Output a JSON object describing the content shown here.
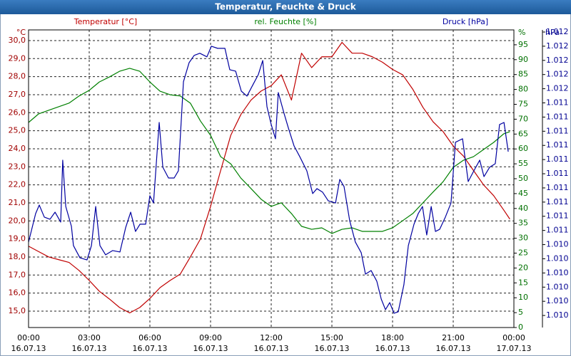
{
  "chart_data": {
    "type": "line",
    "title": "Temperatur, Feuchte & Druck",
    "ylabel": "°C",
    "y2label": "%",
    "y3label": "hPa",
    "xlim": [
      0,
      24
    ],
    "xticks": [
      {
        "value": 0,
        "label": "00:00"
      },
      {
        "value": 3,
        "label": "03:00"
      },
      {
        "value": 6,
        "label": "06:00"
      },
      {
        "value": 9,
        "label": "09:00"
      },
      {
        "value": 12,
        "label": "12:00"
      },
      {
        "value": 15,
        "label": "15:00"
      },
      {
        "value": 18,
        "label": "18:00"
      },
      {
        "value": 21,
        "label": "21:00"
      },
      {
        "value": 24,
        "label": "00:00"
      }
    ],
    "xtick_dates": [
      "16.07.13",
      "16.07.13",
      "16.07.13",
      "16.07.13",
      "16.07.13",
      "16.07.13",
      "16.07.13",
      "16.07.13",
      "17.07.13"
    ],
    "ylim": [
      14.09,
      30.59
    ],
    "yticks": [
      {
        "value": 15,
        "label": "15,0"
      },
      {
        "value": 16,
        "label": "16,0"
      },
      {
        "value": 17,
        "label": "17,0"
      },
      {
        "value": 18,
        "label": "18,0"
      },
      {
        "value": 19,
        "label": "19,0"
      },
      {
        "value": 20,
        "label": "20,0"
      },
      {
        "value": 21,
        "label": "21,0"
      },
      {
        "value": 22,
        "label": "22,0"
      },
      {
        "value": 23,
        "label": "23,0"
      },
      {
        "value": 24,
        "label": "24,0"
      },
      {
        "value": 25,
        "label": "25,0"
      },
      {
        "value": 26,
        "label": "26,0"
      },
      {
        "value": 27,
        "label": "27,0"
      },
      {
        "value": 28,
        "label": "28,0"
      },
      {
        "value": 29,
        "label": "29,0"
      },
      {
        "value": 30,
        "label": "30,0"
      }
    ],
    "y2lim": [
      0,
      100
    ],
    "y2ticks": [
      0,
      5,
      10,
      15,
      20,
      25,
      30,
      35,
      40,
      45,
      50,
      55,
      60,
      65,
      70,
      75,
      80,
      85,
      90,
      95
    ],
    "y3lim": [
      1009.815,
      1011.915
    ],
    "y3ticks": [
      {
        "value": 1009.9,
        "label": "1.010"
      },
      {
        "value": 1010.0,
        "label": "1.010"
      },
      {
        "value": 1010.1,
        "label": "1.010"
      },
      {
        "value": 1010.2,
        "label": "1.010"
      },
      {
        "value": 1010.3,
        "label": "1.010"
      },
      {
        "value": 1010.4,
        "label": "1.010"
      },
      {
        "value": 1010.5,
        "label": "1.011"
      },
      {
        "value": 1010.6,
        "label": "1.011"
      },
      {
        "value": 1010.7,
        "label": "1.011"
      },
      {
        "value": 1010.8,
        "label": "1.011"
      },
      {
        "value": 1010.9,
        "label": "1.011"
      },
      {
        "value": 1011.0,
        "label": "1.011"
      },
      {
        "value": 1011.1,
        "label": "1.011"
      },
      {
        "value": 1011.2,
        "label": "1.011"
      },
      {
        "value": 1011.3,
        "label": "1.011"
      },
      {
        "value": 1011.4,
        "label": "1.011"
      },
      {
        "value": 1011.5,
        "label": "1.012"
      },
      {
        "value": 1011.6,
        "label": "1.012"
      },
      {
        "value": 1011.7,
        "label": "1.012"
      },
      {
        "value": 1011.8,
        "label": "1.012"
      },
      {
        "value": 1011.9,
        "label": "1.012"
      }
    ],
    "grid": true,
    "series": [
      {
        "name": "Temperatur [°C]",
        "color": "#c00000",
        "axis": "y",
        "x": [
          0,
          0.5,
          1,
          1.5,
          2,
          2.5,
          3,
          3.5,
          4,
          4.5,
          5,
          5.5,
          6,
          6.5,
          7,
          7.5,
          8,
          8.5,
          9,
          9.5,
          10,
          10.5,
          11,
          11.5,
          12,
          12.5,
          13,
          13.5,
          14,
          14.5,
          15,
          15.5,
          16,
          16.5,
          17,
          17.5,
          18,
          18.5,
          19,
          19.5,
          20,
          20.5,
          21,
          21.5,
          22,
          22.5,
          23,
          23.5,
          23.8
        ],
        "values": [
          18.6,
          18.3,
          18.0,
          17.85,
          17.7,
          17.25,
          16.7,
          16.1,
          15.67,
          15.2,
          14.9,
          15.2,
          15.7,
          16.3,
          16.7,
          17.05,
          18.0,
          19.0,
          20.8,
          22.8,
          24.75,
          25.9,
          26.7,
          27.2,
          27.5,
          28.1,
          26.7,
          29.3,
          28.5,
          29.1,
          29.1,
          29.9,
          29.3,
          29.3,
          29.1,
          28.8,
          28.4,
          28.1,
          27.3,
          26.3,
          25.5,
          24.95,
          24.15,
          23.6,
          22.8,
          22.0,
          21.4,
          20.6,
          20.1
        ]
      },
      {
        "name": "rel. Feuchte [%]",
        "color": "#008000",
        "axis": "y2",
        "x": [
          0,
          0.5,
          1,
          1.5,
          2,
          2.5,
          3,
          3.5,
          4,
          4.5,
          5,
          5.5,
          6,
          6.5,
          7,
          7.5,
          8,
          8.5,
          9,
          9.5,
          10,
          10.5,
          11,
          11.5,
          12,
          12.5,
          13,
          13.5,
          14,
          14.5,
          15,
          15.5,
          16,
          16.5,
          17,
          17.5,
          18,
          18.5,
          19,
          19.5,
          20,
          20.5,
          21,
          21.5,
          22,
          22.5,
          23,
          23.5,
          23.8
        ],
        "values": [
          68.9,
          71.8,
          73,
          74.2,
          75.4,
          77.8,
          79.7,
          82.5,
          84.2,
          86.1,
          87.1,
          86.1,
          82.5,
          79.4,
          78.2,
          77.8,
          75.4,
          69.4,
          64.6,
          57.4,
          55,
          50.2,
          46.7,
          43.1,
          40.7,
          41.9,
          38.3,
          34,
          33,
          33.5,
          31.6,
          33,
          33.5,
          32.3,
          32.3,
          32.3,
          33.5,
          35.9,
          38.3,
          41.9,
          45.5,
          49,
          53.8,
          56.2,
          57.4,
          59.8,
          62.2,
          65.1,
          65.8
        ]
      },
      {
        "name": "Druck [hPa]",
        "color": "#0000a0",
        "axis": "y3",
        "x": [
          0,
          0.35,
          0.53,
          0.78,
          1.06,
          1.31,
          1.59,
          1.69,
          1.84,
          2.12,
          2.22,
          2.54,
          2.89,
          3.11,
          3.32,
          3.53,
          3.81,
          4.16,
          4.52,
          4.8,
          5.05,
          5.29,
          5.51,
          5.79,
          6.0,
          6.18,
          6.46,
          6.64,
          6.92,
          7.2,
          7.41,
          7.66,
          7.94,
          8.19,
          8.47,
          8.82,
          9.04,
          9.35,
          9.71,
          9.95,
          10.24,
          10.52,
          10.8,
          11.08,
          11.36,
          11.58,
          11.79,
          12.0,
          12.21,
          12.35,
          12.64,
          12.85,
          13.13,
          13.41,
          13.76,
          14.05,
          14.26,
          14.54,
          14.82,
          15.18,
          15.39,
          15.6,
          15.88,
          16.16,
          16.45,
          16.66,
          16.94,
          17.22,
          17.44,
          17.65,
          17.86,
          18.07,
          18.28,
          18.56,
          18.78,
          19.06,
          19.27,
          19.48,
          19.69,
          19.91,
          20.12,
          20.33,
          20.61,
          20.89,
          21.11,
          21.46,
          21.74,
          22.02,
          22.31,
          22.52,
          22.8,
          23.08,
          23.29,
          23.51,
          23.72
        ],
        "values": [
          1010.418,
          1010.619,
          1010.679,
          1010.594,
          1010.579,
          1010.629,
          1010.559,
          1010.996,
          1010.669,
          1010.529,
          1010.393,
          1010.307,
          1010.292,
          1010.393,
          1010.669,
          1010.393,
          1010.328,
          1010.358,
          1010.348,
          1010.519,
          1010.629,
          1010.493,
          1010.544,
          1010.544,
          1010.745,
          1010.694,
          1011.262,
          1010.946,
          1010.87,
          1010.87,
          1010.921,
          1011.549,
          1011.684,
          1011.735,
          1011.75,
          1011.725,
          1011.8,
          1011.785,
          1011.785,
          1011.634,
          1011.624,
          1011.483,
          1011.448,
          1011.524,
          1011.599,
          1011.699,
          1011.373,
          1011.247,
          1011.147,
          1011.473,
          1011.323,
          1011.222,
          1011.096,
          1011.021,
          1010.921,
          1010.76,
          1010.795,
          1010.77,
          1010.709,
          1010.694,
          1010.86,
          1010.81,
          1010.569,
          1010.418,
          1010.343,
          1010.192,
          1010.217,
          1010.142,
          1010.016,
          1009.941,
          1009.991,
          1009.916,
          1009.926,
          1010.117,
          1010.393,
          1010.544,
          1010.619,
          1010.669,
          1010.468,
          1010.669,
          1010.493,
          1010.508,
          1010.594,
          1010.694,
          1011.122,
          1011.147,
          1010.845,
          1010.921,
          1010.996,
          1010.88,
          1010.946,
          1010.971,
          1011.247,
          1011.262,
          1011.056
        ]
      }
    ]
  }
}
